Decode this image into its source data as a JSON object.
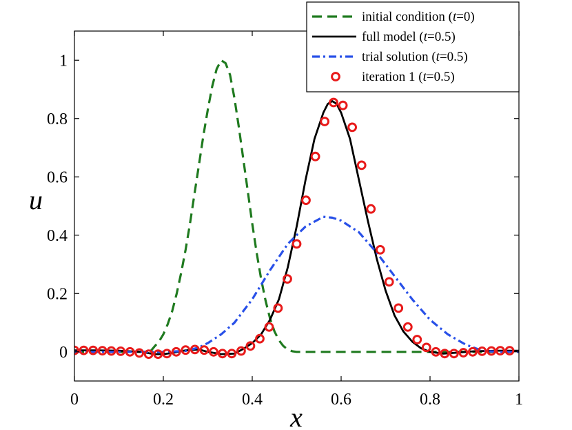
{
  "chart_data": {
    "type": "line",
    "title": "",
    "xlabel": "x",
    "ylabel": "u",
    "xlim": [
      0,
      1
    ],
    "ylim": [
      -0.1,
      1.1
    ],
    "xticks": [
      0,
      0.2,
      0.4,
      0.6,
      0.8,
      1
    ],
    "xtick_labels": [
      "0",
      "0.2",
      "0.4",
      "0.6",
      "0.8",
      "1"
    ],
    "yticks": [
      0,
      0.2,
      0.4,
      0.6,
      0.8,
      1
    ],
    "ytick_labels": [
      "0",
      "0.2",
      "0.4",
      "0.6",
      "0.8",
      "1"
    ],
    "grid": false,
    "legend_position": "top-right",
    "legend": [
      {
        "name": "initial condition",
        "italic": "t",
        "suffix": "=0)",
        "full": "initial condition (t=0)"
      },
      {
        "name": "full model",
        "italic": "t",
        "suffix": "=0.5)",
        "full": "full model (t=0.5)"
      },
      {
        "name": "trial solution",
        "italic": "t",
        "suffix": "=0.5)",
        "full": "trial solution (t=0.5)"
      },
      {
        "name": "iteration 1",
        "italic": "t",
        "suffix": "=0.5)",
        "full": "iteration 1 (t=0.5)"
      }
    ],
    "series": [
      {
        "name": "initial condition (t=0)",
        "style": "dashed",
        "color": "#1f7a1f",
        "x": [
          0,
          0.05,
          0.1,
          0.15,
          0.17,
          0.18,
          0.19,
          0.2,
          0.21,
          0.22,
          0.23,
          0.24,
          0.25,
          0.26,
          0.27,
          0.28,
          0.29,
          0.3,
          0.31,
          0.32,
          0.33,
          0.34,
          0.35,
          0.36,
          0.37,
          0.38,
          0.39,
          0.4,
          0.41,
          0.42,
          0.43,
          0.44,
          0.45,
          0.46,
          0.47,
          0.48,
          0.49,
          0.5,
          0.55,
          0.6,
          0.7,
          0.8,
          0.9,
          1.0
        ],
        "y": [
          0,
          0,
          0,
          0,
          0,
          0.018,
          0.035,
          0.06,
          0.095,
          0.14,
          0.2,
          0.27,
          0.35,
          0.44,
          0.54,
          0.64,
          0.74,
          0.83,
          0.91,
          0.97,
          1.0,
          0.99,
          0.95,
          0.87,
          0.77,
          0.66,
          0.55,
          0.44,
          0.34,
          0.25,
          0.175,
          0.115,
          0.07,
          0.04,
          0.02,
          0.008,
          0.002,
          0,
          0,
          0,
          0,
          0,
          0,
          0
        ]
      },
      {
        "name": "full model (t=0.5)",
        "style": "solid",
        "color": "#000000",
        "x": [
          0,
          0.05,
          0.1,
          0.15,
          0.18,
          0.2,
          0.22,
          0.25,
          0.28,
          0.3,
          0.33,
          0.36,
          0.38,
          0.4,
          0.42,
          0.44,
          0.46,
          0.48,
          0.5,
          0.52,
          0.54,
          0.56,
          0.57,
          0.58,
          0.59,
          0.6,
          0.62,
          0.64,
          0.66,
          0.68,
          0.7,
          0.72,
          0.74,
          0.76,
          0.78,
          0.8,
          0.83,
          0.86,
          0.9,
          0.95,
          1.0
        ],
        "y": [
          0.005,
          0.005,
          0.004,
          0.0,
          -0.008,
          -0.008,
          -0.004,
          0.005,
          0.008,
          0.0,
          -0.008,
          -0.006,
          0.01,
          0.03,
          0.06,
          0.11,
          0.18,
          0.29,
          0.43,
          0.59,
          0.73,
          0.82,
          0.85,
          0.86,
          0.85,
          0.82,
          0.73,
          0.59,
          0.45,
          0.32,
          0.21,
          0.125,
          0.07,
          0.035,
          0.012,
          0.0,
          -0.006,
          -0.003,
          0.002,
          0.004,
          0.004
        ]
      },
      {
        "name": "trial solution (t=0.5)",
        "style": "dashdot",
        "color": "#2850e8",
        "x": [
          0,
          0.05,
          0.1,
          0.15,
          0.2,
          0.25,
          0.28,
          0.3,
          0.33,
          0.36,
          0.4,
          0.44,
          0.48,
          0.52,
          0.56,
          0.58,
          0.6,
          0.64,
          0.68,
          0.72,
          0.76,
          0.8,
          0.84,
          0.88,
          0.91,
          0.93,
          0.96,
          1.0
        ],
        "y": [
          0,
          0,
          0,
          0,
          0,
          0.003,
          0.015,
          0.03,
          0.06,
          0.1,
          0.18,
          0.28,
          0.37,
          0.43,
          0.463,
          0.46,
          0.45,
          0.41,
          0.34,
          0.26,
          0.18,
          0.11,
          0.06,
          0.025,
          0.008,
          0.002,
          0,
          0
        ]
      },
      {
        "name": "iteration 1 (t=0.5)",
        "style": "markers",
        "color": "#e81a1a",
        "x": [
          0.0,
          0.021,
          0.042,
          0.063,
          0.083,
          0.104,
          0.125,
          0.146,
          0.167,
          0.188,
          0.208,
          0.229,
          0.25,
          0.271,
          0.292,
          0.313,
          0.333,
          0.354,
          0.375,
          0.396,
          0.417,
          0.438,
          0.458,
          0.479,
          0.5,
          0.521,
          0.542,
          0.563,
          0.583,
          0.604,
          0.625,
          0.646,
          0.667,
          0.688,
          0.708,
          0.729,
          0.75,
          0.771,
          0.792,
          0.813,
          0.833,
          0.854,
          0.875,
          0.896,
          0.917,
          0.938,
          0.958,
          0.979
        ],
        "y": [
          0.005,
          0.005,
          0.005,
          0.004,
          0.003,
          0.002,
          0.0,
          -0.004,
          -0.008,
          -0.008,
          -0.006,
          0.0,
          0.006,
          0.008,
          0.006,
          0.0,
          -0.006,
          -0.006,
          0.003,
          0.02,
          0.045,
          0.085,
          0.15,
          0.25,
          0.37,
          0.52,
          0.67,
          0.79,
          0.855,
          0.845,
          0.77,
          0.64,
          0.49,
          0.35,
          0.24,
          0.15,
          0.085,
          0.042,
          0.015,
          0.0,
          -0.006,
          -0.006,
          -0.003,
          0.0,
          0.002,
          0.003,
          0.004,
          0.004
        ]
      }
    ]
  }
}
